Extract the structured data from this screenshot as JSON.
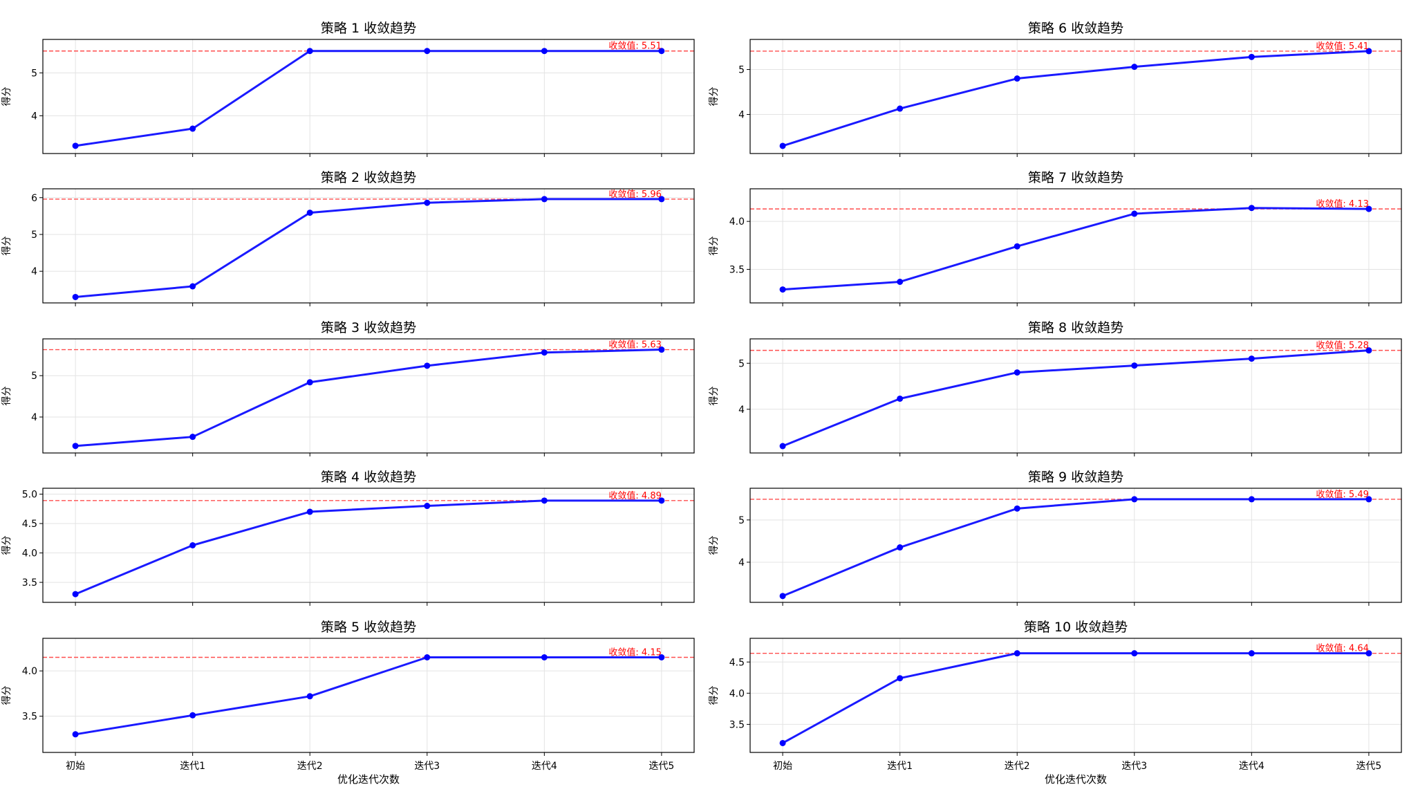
{
  "figure": {
    "x_axis_label": "优化迭代次数",
    "y_axis_label": "得分"
  },
  "colors": {
    "line": "#1a1aff",
    "marker": "#0000ff",
    "ref_line": "#ff4d4d",
    "ref_text": "#ff0000",
    "grid": "#e3e3e3"
  },
  "chart_data": [
    {
      "type": "line",
      "title": "策略 1 收敛趋势",
      "xlabel": "",
      "ylabel": "得分",
      "categories": [
        "初始",
        "迭代1",
        "迭代2",
        "迭代3",
        "迭代4",
        "迭代5"
      ],
      "values": [
        3.3,
        3.7,
        5.51,
        5.51,
        5.51,
        5.51
      ],
      "convergence_value": 5.51,
      "convergence_label": "收敛值: 5.51",
      "ylim": [
        3.12,
        5.78
      ],
      "yticks": [
        4,
        5
      ],
      "ytick_labels": [
        "4",
        "5"
      ],
      "grid": true
    },
    {
      "type": "line",
      "title": "策略 2 收敛趋势",
      "xlabel": "",
      "ylabel": "得分",
      "categories": [
        "初始",
        "迭代1",
        "迭代2",
        "迭代3",
        "迭代4",
        "迭代5"
      ],
      "values": [
        3.3,
        3.59,
        5.59,
        5.86,
        5.96,
        5.96
      ],
      "convergence_value": 5.96,
      "convergence_label": "收敛值: 5.96",
      "ylim": [
        3.14,
        6.24
      ],
      "yticks": [
        4,
        5,
        6
      ],
      "ytick_labels": [
        "4",
        "5",
        "6"
      ],
      "grid": true
    },
    {
      "type": "line",
      "title": "策略 3 收敛趋势",
      "xlabel": "",
      "ylabel": "得分",
      "categories": [
        "初始",
        "迭代1",
        "迭代2",
        "迭代3",
        "迭代4",
        "迭代5"
      ],
      "values": [
        3.3,
        3.52,
        4.84,
        5.24,
        5.56,
        5.63
      ],
      "convergence_value": 5.63,
      "convergence_label": "收敛值: 5.63",
      "ylim": [
        3.13,
        5.89
      ],
      "yticks": [
        4,
        5
      ],
      "ytick_labels": [
        "4",
        "5"
      ],
      "grid": true
    },
    {
      "type": "line",
      "title": "策略 4 收敛趋势",
      "xlabel": "",
      "ylabel": "得分",
      "categories": [
        "初始",
        "迭代1",
        "迭代2",
        "迭代3",
        "迭代4",
        "迭代5"
      ],
      "values": [
        3.3,
        4.13,
        4.7,
        4.8,
        4.89,
        4.89
      ],
      "convergence_value": 4.89,
      "convergence_label": "收敛值: 4.89",
      "ylim": [
        3.16,
        5.1
      ],
      "yticks": [
        3.5,
        4.0,
        4.5,
        5.0
      ],
      "ytick_labels": [
        "3.5",
        "4.0",
        "4.5",
        "5.0"
      ],
      "grid": true
    },
    {
      "type": "line",
      "title": "策略 5 收敛趋势",
      "xlabel": "优化迭代次数",
      "ylabel": "得分",
      "categories": [
        "初始",
        "迭代1",
        "迭代2",
        "迭代3",
        "迭代4",
        "迭代5"
      ],
      "values": [
        3.3,
        3.51,
        3.72,
        4.15,
        4.15,
        4.15
      ],
      "convergence_value": 4.15,
      "convergence_label": "收敛值: 4.15",
      "ylim": [
        3.1,
        4.36
      ],
      "yticks": [
        3.5,
        4.0
      ],
      "ytick_labels": [
        "3.5",
        "4.0"
      ],
      "grid": true
    },
    {
      "type": "line",
      "title": "策略 6 收敛趋势",
      "xlabel": "",
      "ylabel": "得分",
      "categories": [
        "初始",
        "迭代1",
        "迭代2",
        "迭代3",
        "迭代4",
        "迭代5"
      ],
      "values": [
        3.3,
        4.13,
        4.8,
        5.06,
        5.28,
        5.41
      ],
      "convergence_value": 5.41,
      "convergence_label": "收敛值: 5.41",
      "ylim": [
        3.13,
        5.67
      ],
      "yticks": [
        4,
        5
      ],
      "ytick_labels": [
        "4",
        "5"
      ],
      "grid": true
    },
    {
      "type": "line",
      "title": "策略 7 收敛趋势",
      "xlabel": "",
      "ylabel": "得分",
      "categories": [
        "初始",
        "迭代1",
        "迭代2",
        "迭代3",
        "迭代4",
        "迭代5"
      ],
      "values": [
        3.29,
        3.37,
        3.74,
        4.08,
        4.14,
        4.13
      ],
      "convergence_value": 4.13,
      "convergence_label": "收敛值: 4.13",
      "ylim": [
        3.15,
        4.34
      ],
      "yticks": [
        3.5,
        4.0
      ],
      "ytick_labels": [
        "3.5",
        "4.0"
      ],
      "grid": true
    },
    {
      "type": "line",
      "title": "策略 8 收敛趋势",
      "xlabel": "",
      "ylabel": "得分",
      "categories": [
        "初始",
        "迭代1",
        "迭代2",
        "迭代3",
        "迭代4",
        "迭代5"
      ],
      "values": [
        3.2,
        4.23,
        4.8,
        4.95,
        5.1,
        5.28
      ],
      "convergence_value": 5.28,
      "convergence_label": "收敛值: 5.28",
      "ylim": [
        3.05,
        5.53
      ],
      "yticks": [
        4,
        5
      ],
      "ytick_labels": [
        "4",
        "5"
      ],
      "grid": true
    },
    {
      "type": "line",
      "title": "策略 9 收敛趋势",
      "xlabel": "",
      "ylabel": "得分",
      "categories": [
        "初始",
        "迭代1",
        "迭代2",
        "迭代3",
        "迭代4",
        "迭代5"
      ],
      "values": [
        3.2,
        4.35,
        5.27,
        5.49,
        5.49,
        5.49
      ],
      "convergence_value": 5.49,
      "convergence_label": "收敛值: 5.49",
      "ylim": [
        3.05,
        5.75
      ],
      "yticks": [
        4,
        5
      ],
      "ytick_labels": [
        "4",
        "5"
      ],
      "grid": true
    },
    {
      "type": "line",
      "title": "策略 10 收敛趋势",
      "xlabel": "优化迭代次数",
      "ylabel": "得分",
      "categories": [
        "初始",
        "迭代1",
        "迭代2",
        "迭代3",
        "迭代4",
        "迭代5"
      ],
      "values": [
        3.2,
        4.24,
        4.64,
        4.64,
        4.64,
        4.64
      ],
      "convergence_value": 4.64,
      "convergence_label": "收敛值: 4.64",
      "ylim": [
        3.05,
        4.88
      ],
      "yticks": [
        3.5,
        4.0,
        4.5
      ],
      "ytick_labels": [
        "3.5",
        "4.0",
        "4.5"
      ],
      "grid": true
    }
  ]
}
